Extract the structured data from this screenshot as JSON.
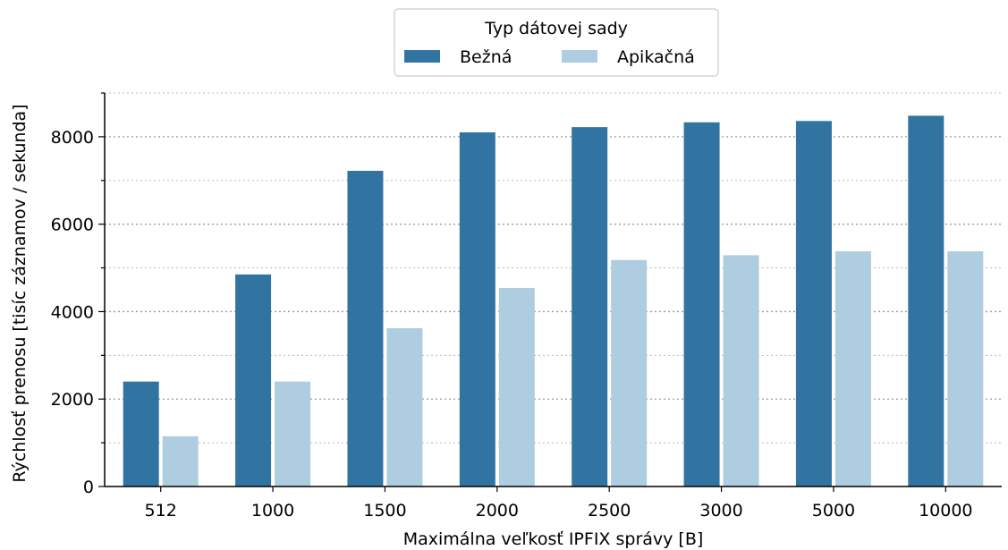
{
  "chart_data": {
    "type": "bar",
    "title": "",
    "xlabel": "Maximálna veľkosť IPFIX správy [B]",
    "ylabel": "Rýchlosť prenosu [tisíc záznamov / sekunda]",
    "categories": [
      "512",
      "1000",
      "1500",
      "2000",
      "2500",
      "3000",
      "5000",
      "10000"
    ],
    "series": [
      {
        "name": "Bežná",
        "color": "#3274a1",
        "values": [
          2400,
          4850,
          7220,
          8100,
          8220,
          8330,
          8360,
          8480
        ]
      },
      {
        "name": "Apikačná",
        "color": "#afcde0",
        "values": [
          1150,
          2400,
          3620,
          4540,
          5180,
          5290,
          5380,
          5380
        ]
      }
    ],
    "ylim": [
      0,
      9000
    ],
    "yticks": [
      0,
      2000,
      4000,
      6000,
      8000
    ],
    "grid": "horizontal dotted",
    "legend": {
      "title": "Typ dátovej sady",
      "placement": "top-center"
    }
  }
}
